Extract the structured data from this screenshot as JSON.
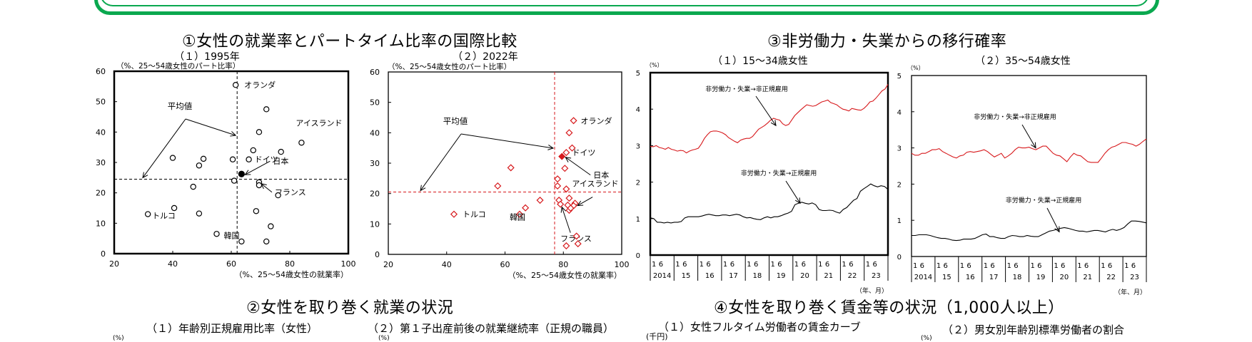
{
  "frame": {
    "color": "#0aa84f"
  },
  "sections": {
    "s1": {
      "title": "①女性の就業率とパートタイム比率の国際比較"
    },
    "s2": {
      "title": "②女性を取り巻く就業の状況",
      "sub1": "（１）年齢別正規雇用比率（女性）",
      "sub2": "（２）第１子出産前後の就業継続率（正規の職員）",
      "unit1": "(%)",
      "unit2": "(%)"
    },
    "s3": {
      "title": "③非労働力・失業からの移行確率"
    },
    "s4": {
      "title": "④女性を取り巻く賃金等の状況（1,000人以上）",
      "sub1": "（１）女性フルタイム労働者の賃金カーブ",
      "sub2": "（２）男女別年齢別標準労働者の割合",
      "unit1": "(千円)",
      "unit2": "(%)"
    }
  },
  "chart_data": [
    {
      "id": "scatter1995",
      "type": "scatter",
      "title": "（１）1995年",
      "ylabel": "（%、25～54歳女性のパート比率）",
      "xlabel": "（%、25～54歳女性の就業率）",
      "xlim": [
        20,
        100
      ],
      "ylim": [
        0,
        60
      ],
      "xticks": [
        20,
        40,
        60,
        80,
        100
      ],
      "yticks": [
        0,
        10,
        20,
        30,
        40,
        50,
        60
      ],
      "marker": "circle",
      "color": "#000000",
      "mean": {
        "x": 62,
        "y": 24.5,
        "label": "平均値"
      },
      "points": [
        {
          "x": 61.5,
          "y": 55.5,
          "label": "オランダ"
        },
        {
          "x": 72,
          "y": 47.5
        },
        {
          "x": 84,
          "y": 36.5,
          "label": "アイスランド"
        },
        {
          "x": 69.5,
          "y": 40
        },
        {
          "x": 77,
          "y": 33.5
        },
        {
          "x": 67.5,
          "y": 34
        },
        {
          "x": 40,
          "y": 31.5
        },
        {
          "x": 50.5,
          "y": 31.2
        },
        {
          "x": 60.5,
          "y": 31
        },
        {
          "x": 66,
          "y": 31,
          "label": "ドイツ"
        },
        {
          "x": 49,
          "y": 29
        },
        {
          "x": 63.5,
          "y": 26.2,
          "label": "日本",
          "highlight": true
        },
        {
          "x": 61,
          "y": 24
        },
        {
          "x": 69.5,
          "y": 23.5,
          "label": "フランス"
        },
        {
          "x": 69.5,
          "y": 22.5
        },
        {
          "x": 47,
          "y": 22
        },
        {
          "x": 76,
          "y": 19.2
        },
        {
          "x": 40.5,
          "y": 15
        },
        {
          "x": 31.5,
          "y": 13,
          "label": "トルコ"
        },
        {
          "x": 49,
          "y": 13.2
        },
        {
          "x": 68.5,
          "y": 14
        },
        {
          "x": 73.5,
          "y": 9
        },
        {
          "x": 55,
          "y": 6.5,
          "label": "韓国"
        },
        {
          "x": 63.5,
          "y": 4
        },
        {
          "x": 72,
          "y": 4
        }
      ]
    },
    {
      "id": "scatter2022",
      "type": "scatter",
      "title": "（２）2022年",
      "ylabel": "（%、25～54歳女性のパート比率）",
      "xlabel": "（%、25～54歳女性の就業率）",
      "xlim": [
        20,
        100
      ],
      "ylim": [
        0,
        60
      ],
      "xticks": [
        20,
        40,
        60,
        80,
        100
      ],
      "yticks": [
        0,
        10,
        20,
        30,
        40,
        50,
        60
      ],
      "marker": "diamond",
      "color": "#d7191c",
      "mean": {
        "x": 77,
        "y": 20.5,
        "label": "平均値"
      },
      "points": [
        {
          "x": 83.5,
          "y": 44,
          "label": "オランダ"
        },
        {
          "x": 82,
          "y": 40
        },
        {
          "x": 83,
          "y": 35
        },
        {
          "x": 81,
          "y": 33.5,
          "label": "ドイツ"
        },
        {
          "x": 79.5,
          "y": 32.2,
          "label": "日本",
          "highlight": true
        },
        {
          "x": 80.5,
          "y": 28.3
        },
        {
          "x": 62,
          "y": 28.5
        },
        {
          "x": 57.5,
          "y": 22.5
        },
        {
          "x": 78,
          "y": 24.8
        },
        {
          "x": 78,
          "y": 22.5
        },
        {
          "x": 81,
          "y": 21.5,
          "label": "アイスランド"
        },
        {
          "x": 82,
          "y": 18.5
        },
        {
          "x": 78.5,
          "y": 17.8
        },
        {
          "x": 84,
          "y": 16.8
        },
        {
          "x": 81.5,
          "y": 16.2
        },
        {
          "x": 83.5,
          "y": 16
        },
        {
          "x": 82,
          "y": 14.5
        },
        {
          "x": 82.5,
          "y": 15.2
        },
        {
          "x": 79,
          "y": 16.5,
          "label": "フランス"
        },
        {
          "x": 72,
          "y": 17.8
        },
        {
          "x": 67,
          "y": 15.3
        },
        {
          "x": 65,
          "y": 13.2,
          "label": "韓国"
        },
        {
          "x": 42.5,
          "y": 13.2,
          "label": "トルコ"
        },
        {
          "x": 84.5,
          "y": 6
        },
        {
          "x": 85,
          "y": 3.5
        },
        {
          "x": 81,
          "y": 2.8
        }
      ]
    },
    {
      "id": "transition15_34",
      "type": "line",
      "title": "（１）15～34歳女性",
      "yunit": "（%）",
      "xunit": "（年、月）",
      "ylim": [
        0,
        5
      ],
      "yticks": [
        0,
        1,
        2,
        3,
        4,
        5
      ],
      "x_years": [
        "2014",
        "15",
        "16",
        "17",
        "18",
        "19",
        "20",
        "21",
        "22",
        "23"
      ],
      "x_months": [
        "1",
        "6"
      ],
      "series": [
        {
          "name": "非労働力・失業→非正規雇用",
          "color": "#d7191c",
          "values": [
            2.98,
            2.97,
            3.0,
            2.95,
            2.93,
            2.9,
            2.95,
            2.9,
            2.88,
            2.85,
            2.87,
            2.86,
            2.8,
            2.85,
            2.88,
            2.9,
            2.93,
            3.05,
            3.2,
            3.3,
            3.38,
            3.4,
            3.4,
            3.38,
            3.35,
            3.3,
            3.22,
            3.17,
            3.12,
            3.08,
            3.15,
            3.18,
            3.2,
            3.2,
            3.25,
            3.35,
            3.45,
            3.5,
            3.55,
            3.62,
            3.7,
            3.75,
            3.72,
            3.7,
            3.6,
            3.55,
            3.58,
            3.7,
            3.82,
            3.9,
            3.98,
            4.05,
            4.12,
            4.1,
            4.08,
            4.1,
            4.15,
            4.2,
            4.22,
            4.25,
            4.18,
            4.15,
            4.12,
            4.05,
            4.0,
            3.98,
            3.95,
            4.02,
            4.0,
            3.98,
            3.97,
            4.02,
            4.1,
            4.2,
            4.22,
            4.3,
            4.4,
            4.5,
            4.55,
            4.68
          ]
        },
        {
          "name": "非労働力・失業→正規雇用",
          "color": "#000000",
          "values": [
            1.02,
            1.0,
            0.9,
            0.9,
            0.88,
            0.9,
            0.88,
            0.9,
            0.9,
            0.92,
            1.02,
            1.05,
            1.05,
            1.05,
            1.05,
            1.07,
            1.1,
            1.12,
            1.1,
            1.08,
            1.08,
            1.1,
            1.1,
            1.08,
            1.1,
            1.12,
            1.1,
            1.05,
            1.02,
            1.03,
            1.0,
            0.98,
            0.97,
            1.02,
            1.05,
            1.02,
            1.05,
            1.05,
            1.08,
            1.12,
            1.15,
            1.2,
            1.38,
            1.42,
            1.45,
            1.42,
            1.4,
            1.43,
            1.38,
            1.25,
            1.22,
            1.22,
            1.23,
            1.22,
            1.18,
            1.15,
            1.25,
            1.3,
            1.4,
            1.5,
            1.55,
            1.75,
            1.82,
            1.88,
            1.95,
            1.9,
            1.87,
            1.9,
            1.88,
            1.8
          ]
        }
      ],
      "annotations": [
        {
          "text": "非労働力・失業→非正規雇用",
          "series": 0
        },
        {
          "text": "非労働力・失業→正規雇用",
          "series": 1
        }
      ]
    },
    {
      "id": "transition35_54",
      "type": "line",
      "title": "（２）35～54歳女性",
      "yunit": "（%）",
      "xunit": "（年、月）",
      "ylim": [
        0,
        5
      ],
      "yticks": [
        0,
        1,
        2,
        3,
        4,
        5
      ],
      "x_years": [
        "2014",
        "15",
        "16",
        "17",
        "18",
        "19",
        "20",
        "21",
        "22",
        "23"
      ],
      "x_months": [
        "1",
        "6"
      ],
      "series": [
        {
          "name": "非労働力・失業→非正規雇用",
          "color": "#d7191c",
          "values": [
            2.85,
            2.8,
            2.8,
            2.85,
            2.85,
            2.9,
            2.95,
            2.95,
            2.98,
            2.9,
            2.85,
            2.8,
            2.75,
            2.72,
            2.78,
            2.8,
            2.88,
            2.9,
            2.88,
            2.9,
            2.92,
            2.95,
            2.9,
            2.82,
            2.75,
            2.8,
            2.85,
            2.72,
            2.78,
            2.85,
            2.95,
            3.02,
            3.0,
            3.0,
            3.02,
            2.98,
            2.95,
            3.0,
            3.05,
            3.05,
            2.95,
            2.85,
            2.8,
            2.78,
            2.7,
            2.62,
            2.75,
            2.85,
            2.8,
            2.78,
            2.7,
            2.62,
            2.6,
            2.6,
            2.6,
            2.72,
            2.85,
            2.95,
            3.02,
            3.05,
            3.1,
            3.15,
            3.15,
            3.12,
            3.1,
            3.05,
            3.1,
            3.18,
            3.25
          ]
        },
        {
          "name": "非労働力・失業→正規雇用",
          "color": "#000000",
          "values": [
            0.58,
            0.58,
            0.6,
            0.6,
            0.6,
            0.58,
            0.55,
            0.52,
            0.5,
            0.5,
            0.48,
            0.45,
            0.44,
            0.45,
            0.48,
            0.48,
            0.48,
            0.5,
            0.55,
            0.6,
            0.62,
            0.55,
            0.55,
            0.52,
            0.5,
            0.5,
            0.55,
            0.58,
            0.57,
            0.55,
            0.55,
            0.58,
            0.56,
            0.55,
            0.55,
            0.6,
            0.65,
            0.7,
            0.72,
            0.75,
            0.78,
            0.8,
            0.78,
            0.75,
            0.72,
            0.7,
            0.7,
            0.68,
            0.7,
            0.72,
            0.72,
            0.7,
            0.68,
            0.72,
            0.75,
            0.72,
            0.75,
            0.8,
            0.9,
            0.98,
            0.98,
            0.97,
            0.95,
            0.93
          ]
        }
      ],
      "annotations": [
        {
          "text": "非労働力・失業→非正規雇用",
          "series": 0
        },
        {
          "text": "非労働力・失業→正規雇用",
          "series": 1
        }
      ]
    }
  ]
}
